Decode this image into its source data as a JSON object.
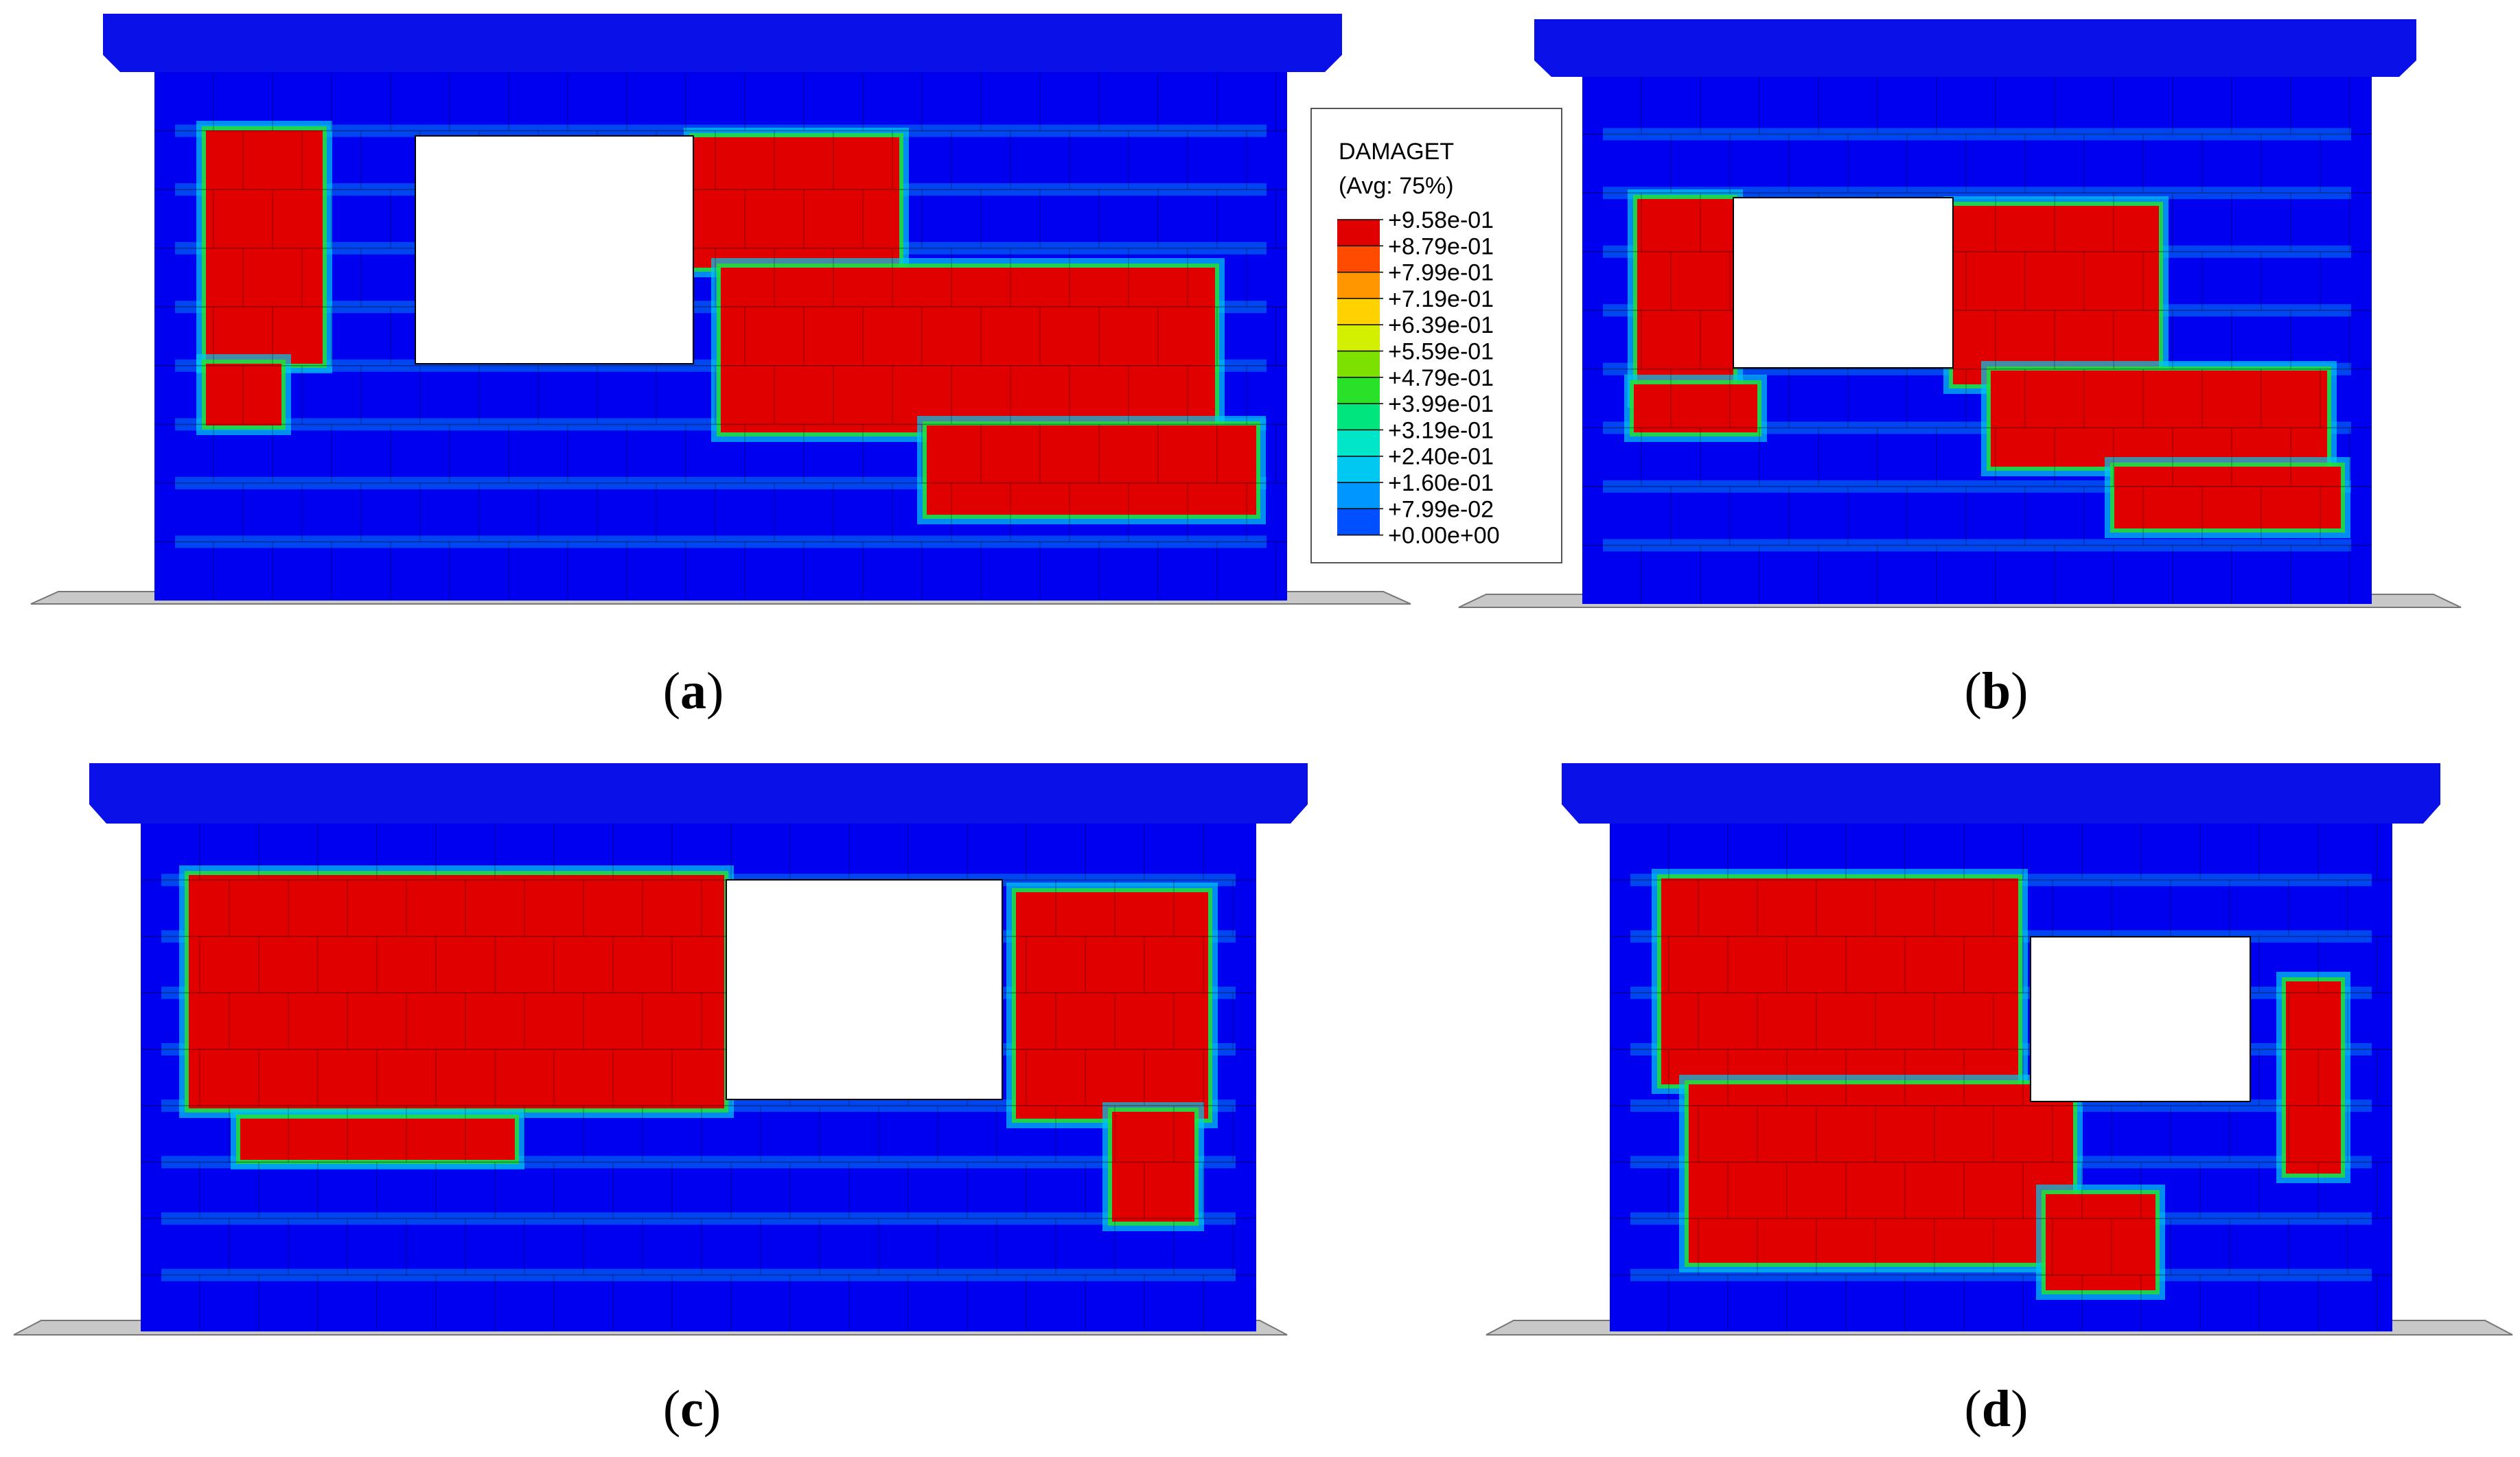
{
  "legend": {
    "title": "DAMAGET",
    "subtitle": "(Avg: 75%)",
    "entries": [
      {
        "label": "+9.58e-01",
        "color": "#e00000"
      },
      {
        "label": "+8.79e-01",
        "color": "#ff4b00"
      },
      {
        "label": "+7.99e-01",
        "color": "#ff9600"
      },
      {
        "label": "+7.19e-01",
        "color": "#ffd200"
      },
      {
        "label": "+6.39e-01",
        "color": "#d2f000"
      },
      {
        "label": "+5.59e-01",
        "color": "#7de100"
      },
      {
        "label": "+4.79e-01",
        "color": "#28e128"
      },
      {
        "label": "+3.99e-01",
        "color": "#00e67d"
      },
      {
        "label": "+3.19e-01",
        "color": "#00e6c8"
      },
      {
        "label": "+2.40e-01",
        "color": "#00c8f0"
      },
      {
        "label": "+1.60e-01",
        "color": "#0096ff"
      },
      {
        "label": "+7.99e-02",
        "color": "#0050ff"
      },
      {
        "label": "+0.00e+00",
        "color": "#0000ff"
      }
    ]
  },
  "panels": [
    {
      "name": "a",
      "open": "(",
      "letter": "a",
      "close": ")"
    },
    {
      "name": "b",
      "open": "(",
      "letter": "b",
      "close": ")"
    },
    {
      "name": "c",
      "open": "(",
      "letter": "c",
      "close": ")"
    },
    {
      "name": "d",
      "open": "(",
      "letter": "d",
      "close": ")"
    }
  ],
  "colors": {
    "wall": "#0000f0",
    "slab": "#0a10e8",
    "damage_high": "#e00000",
    "damage_mid": "#28e128",
    "damage_low": "#00c8f0",
    "ground": "#c8c8c8",
    "opening": "#ffffff"
  }
}
